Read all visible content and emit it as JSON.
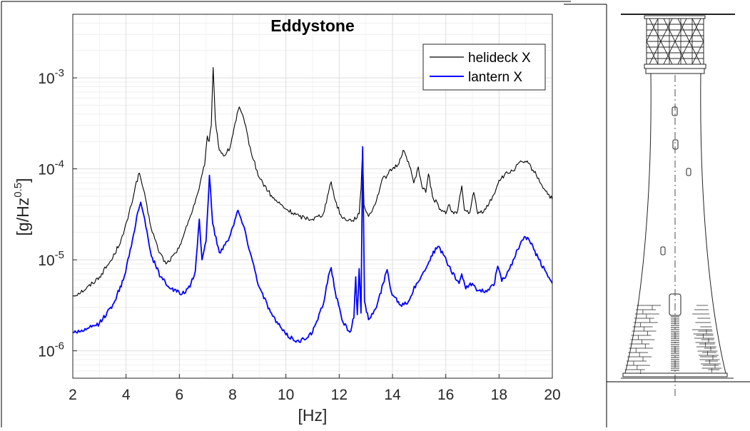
{
  "chart_data": {
    "type": "line",
    "title": "Eddystone",
    "xlabel": "[Hz]",
    "ylabel_base": "[g/Hz",
    "ylabel_sup": "0.5",
    "ylabel_close": "]",
    "xlim": [
      2,
      20
    ],
    "ylim": [
      5e-07,
      0.005
    ],
    "yscale": "log",
    "grid": true,
    "legend_position": "top-right",
    "x_ticks": [
      2,
      4,
      6,
      8,
      10,
      12,
      14,
      16,
      18,
      20
    ],
    "x_tick_labels": [
      "2",
      "4",
      "6",
      "8",
      "10",
      "12",
      "14",
      "16",
      "18",
      "20"
    ],
    "y_ticks": [
      1e-06,
      1e-05,
      0.0001,
      0.001
    ],
    "y_tick_base": "10",
    "y_tick_exponents": [
      "-6",
      "-5",
      "-4",
      "-3"
    ],
    "series": [
      {
        "name": "helideck X",
        "color": "#000000",
        "points": [
          [
            2.0,
            4e-06
          ],
          [
            2.5,
            4.8e-06
          ],
          [
            3.0,
            6.5e-06
          ],
          [
            3.5,
            1.05e-05
          ],
          [
            3.9,
            1.9e-05
          ],
          [
            4.2,
            4e-05
          ],
          [
            4.35,
            6.5e-05
          ],
          [
            4.5,
            9e-05
          ],
          [
            4.65,
            6e-05
          ],
          [
            4.9,
            2.5e-05
          ],
          [
            5.2,
            1.3e-05
          ],
          [
            5.5,
            9e-06
          ],
          [
            5.9,
            1.2e-05
          ],
          [
            6.3,
            2.4e-05
          ],
          [
            6.7,
            5.5e-05
          ],
          [
            6.95,
            0.00011
          ],
          [
            7.05,
            0.00023
          ],
          [
            7.12,
            0.0002
          ],
          [
            7.2,
            0.0003
          ],
          [
            7.27,
            0.0013
          ],
          [
            7.35,
            0.00035
          ],
          [
            7.5,
            0.00016
          ],
          [
            7.7,
            0.00014
          ],
          [
            7.9,
            0.00017
          ],
          [
            8.05,
            0.00028
          ],
          [
            8.25,
            0.00048
          ],
          [
            8.45,
            0.00032
          ],
          [
            8.7,
            0.00015
          ],
          [
            9.0,
            8e-05
          ],
          [
            9.5,
            4.8e-05
          ],
          [
            10.0,
            3.6e-05
          ],
          [
            10.5,
            3e-05
          ],
          [
            11.0,
            2.8e-05
          ],
          [
            11.4,
            3.2e-05
          ],
          [
            11.6,
            5.5e-05
          ],
          [
            11.7,
            7.2e-05
          ],
          [
            11.85,
            4.5e-05
          ],
          [
            12.1,
            2.9e-05
          ],
          [
            12.5,
            2.7e-05
          ],
          [
            12.75,
            3.2e-05
          ],
          [
            12.82,
            6e-05
          ],
          [
            12.88,
            0.000175
          ],
          [
            12.93,
            4e-05
          ],
          [
            13.1,
            3e-05
          ],
          [
            13.4,
            4.5e-05
          ],
          [
            13.6,
            7.5e-05
          ],
          [
            13.8,
            8.5e-05
          ],
          [
            14.0,
            0.0001
          ],
          [
            14.2,
            0.00011
          ],
          [
            14.4,
            0.00016
          ],
          [
            14.6,
            0.00012
          ],
          [
            14.8,
            7e-05
          ],
          [
            14.97,
            0.000105
          ],
          [
            15.1,
            6.5e-05
          ],
          [
            15.25,
            5.5e-05
          ],
          [
            15.35,
            8.8e-05
          ],
          [
            15.5,
            5e-05
          ],
          [
            15.8,
            3.6e-05
          ],
          [
            16.0,
            3.2e-05
          ],
          [
            16.1,
            4e-05
          ],
          [
            16.3,
            3.2e-05
          ],
          [
            16.45,
            3.5e-05
          ],
          [
            16.6,
            6.5e-05
          ],
          [
            16.7,
            3.5e-05
          ],
          [
            16.9,
            3.3e-05
          ],
          [
            17.05,
            5.5e-05
          ],
          [
            17.2,
            3.2e-05
          ],
          [
            17.5,
            3.6e-05
          ],
          [
            17.8,
            5.2e-05
          ],
          [
            18.0,
            7.5e-05
          ],
          [
            18.2,
            8.5e-05
          ],
          [
            18.5,
            9.5e-05
          ],
          [
            18.85,
            0.00012
          ],
          [
            19.1,
            0.000115
          ],
          [
            19.4,
            8.5e-05
          ],
          [
            19.7,
            6e-05
          ],
          [
            20.0,
            4.6e-05
          ]
        ]
      },
      {
        "name": "lantern X",
        "color": "#0000ff",
        "points": [
          [
            2.0,
            1.6e-06
          ],
          [
            2.5,
            1.7e-06
          ],
          [
            3.0,
            2e-06
          ],
          [
            3.5,
            3.2e-06
          ],
          [
            3.9,
            6e-06
          ],
          [
            4.2,
            1.4e-05
          ],
          [
            4.4,
            3e-05
          ],
          [
            4.55,
            4.3e-05
          ],
          [
            4.7,
            2.8e-05
          ],
          [
            4.95,
            1.1e-05
          ],
          [
            5.3,
            6.5e-06
          ],
          [
            5.7,
            4.8e-06
          ],
          [
            6.1,
            4.2e-06
          ],
          [
            6.4,
            5e-06
          ],
          [
            6.6,
            7.5e-06
          ],
          [
            6.75,
            2.8e-05
          ],
          [
            6.85,
            1e-05
          ],
          [
            7.0,
            1.6e-05
          ],
          [
            7.13,
            8.5e-05
          ],
          [
            7.25,
            2.5e-05
          ],
          [
            7.5,
            1.2e-05
          ],
          [
            7.8,
            1.6e-05
          ],
          [
            8.0,
            2.3e-05
          ],
          [
            8.2,
            3.5e-05
          ],
          [
            8.4,
            2.4e-05
          ],
          [
            8.7,
            1.1e-05
          ],
          [
            9.0,
            5e-06
          ],
          [
            9.5,
            2.4e-06
          ],
          [
            10.0,
            1.5e-06
          ],
          [
            10.5,
            1.25e-06
          ],
          [
            11.0,
            1.6e-06
          ],
          [
            11.4,
            3.2e-06
          ],
          [
            11.6,
            6.8e-06
          ],
          [
            11.7,
            8.2e-06
          ],
          [
            11.85,
            4.5e-06
          ],
          [
            12.1,
            2.2e-06
          ],
          [
            12.4,
            1.6e-06
          ],
          [
            12.55,
            2.3e-06
          ],
          [
            12.62,
            6.5e-06
          ],
          [
            12.68,
            2.5e-06
          ],
          [
            12.75,
            8e-06
          ],
          [
            12.82,
            2.6e-06
          ],
          [
            12.88,
            0.000175
          ],
          [
            12.95,
            3.5e-06
          ],
          [
            13.1,
            2.2e-06
          ],
          [
            13.4,
            3e-06
          ],
          [
            13.65,
            5.5e-06
          ],
          [
            13.8,
            7.8e-06
          ],
          [
            13.95,
            4.5e-06
          ],
          [
            14.3,
            3.2e-06
          ],
          [
            14.6,
            3.5e-06
          ],
          [
            14.9,
            5.5e-06
          ],
          [
            15.2,
            7.5e-06
          ],
          [
            15.45,
            1.1e-05
          ],
          [
            15.7,
            1.4e-05
          ],
          [
            15.95,
            1.1e-05
          ],
          [
            16.2,
            7.5e-06
          ],
          [
            16.5,
            5.5e-06
          ],
          [
            16.6,
            7e-06
          ],
          [
            16.75,
            4.8e-06
          ],
          [
            17.0,
            5.5e-06
          ],
          [
            17.2,
            4.6e-06
          ],
          [
            17.5,
            4.6e-06
          ],
          [
            17.8,
            5.2e-06
          ],
          [
            17.95,
            8.5e-06
          ],
          [
            18.1,
            5.8e-06
          ],
          [
            18.4,
            8e-06
          ],
          [
            18.7,
            1.3e-05
          ],
          [
            18.95,
            1.8e-05
          ],
          [
            19.15,
            1.6e-05
          ],
          [
            19.5,
            1e-05
          ],
          [
            19.8,
            7e-06
          ],
          [
            20.0,
            5.5e-06
          ]
        ]
      }
    ]
  }
}
